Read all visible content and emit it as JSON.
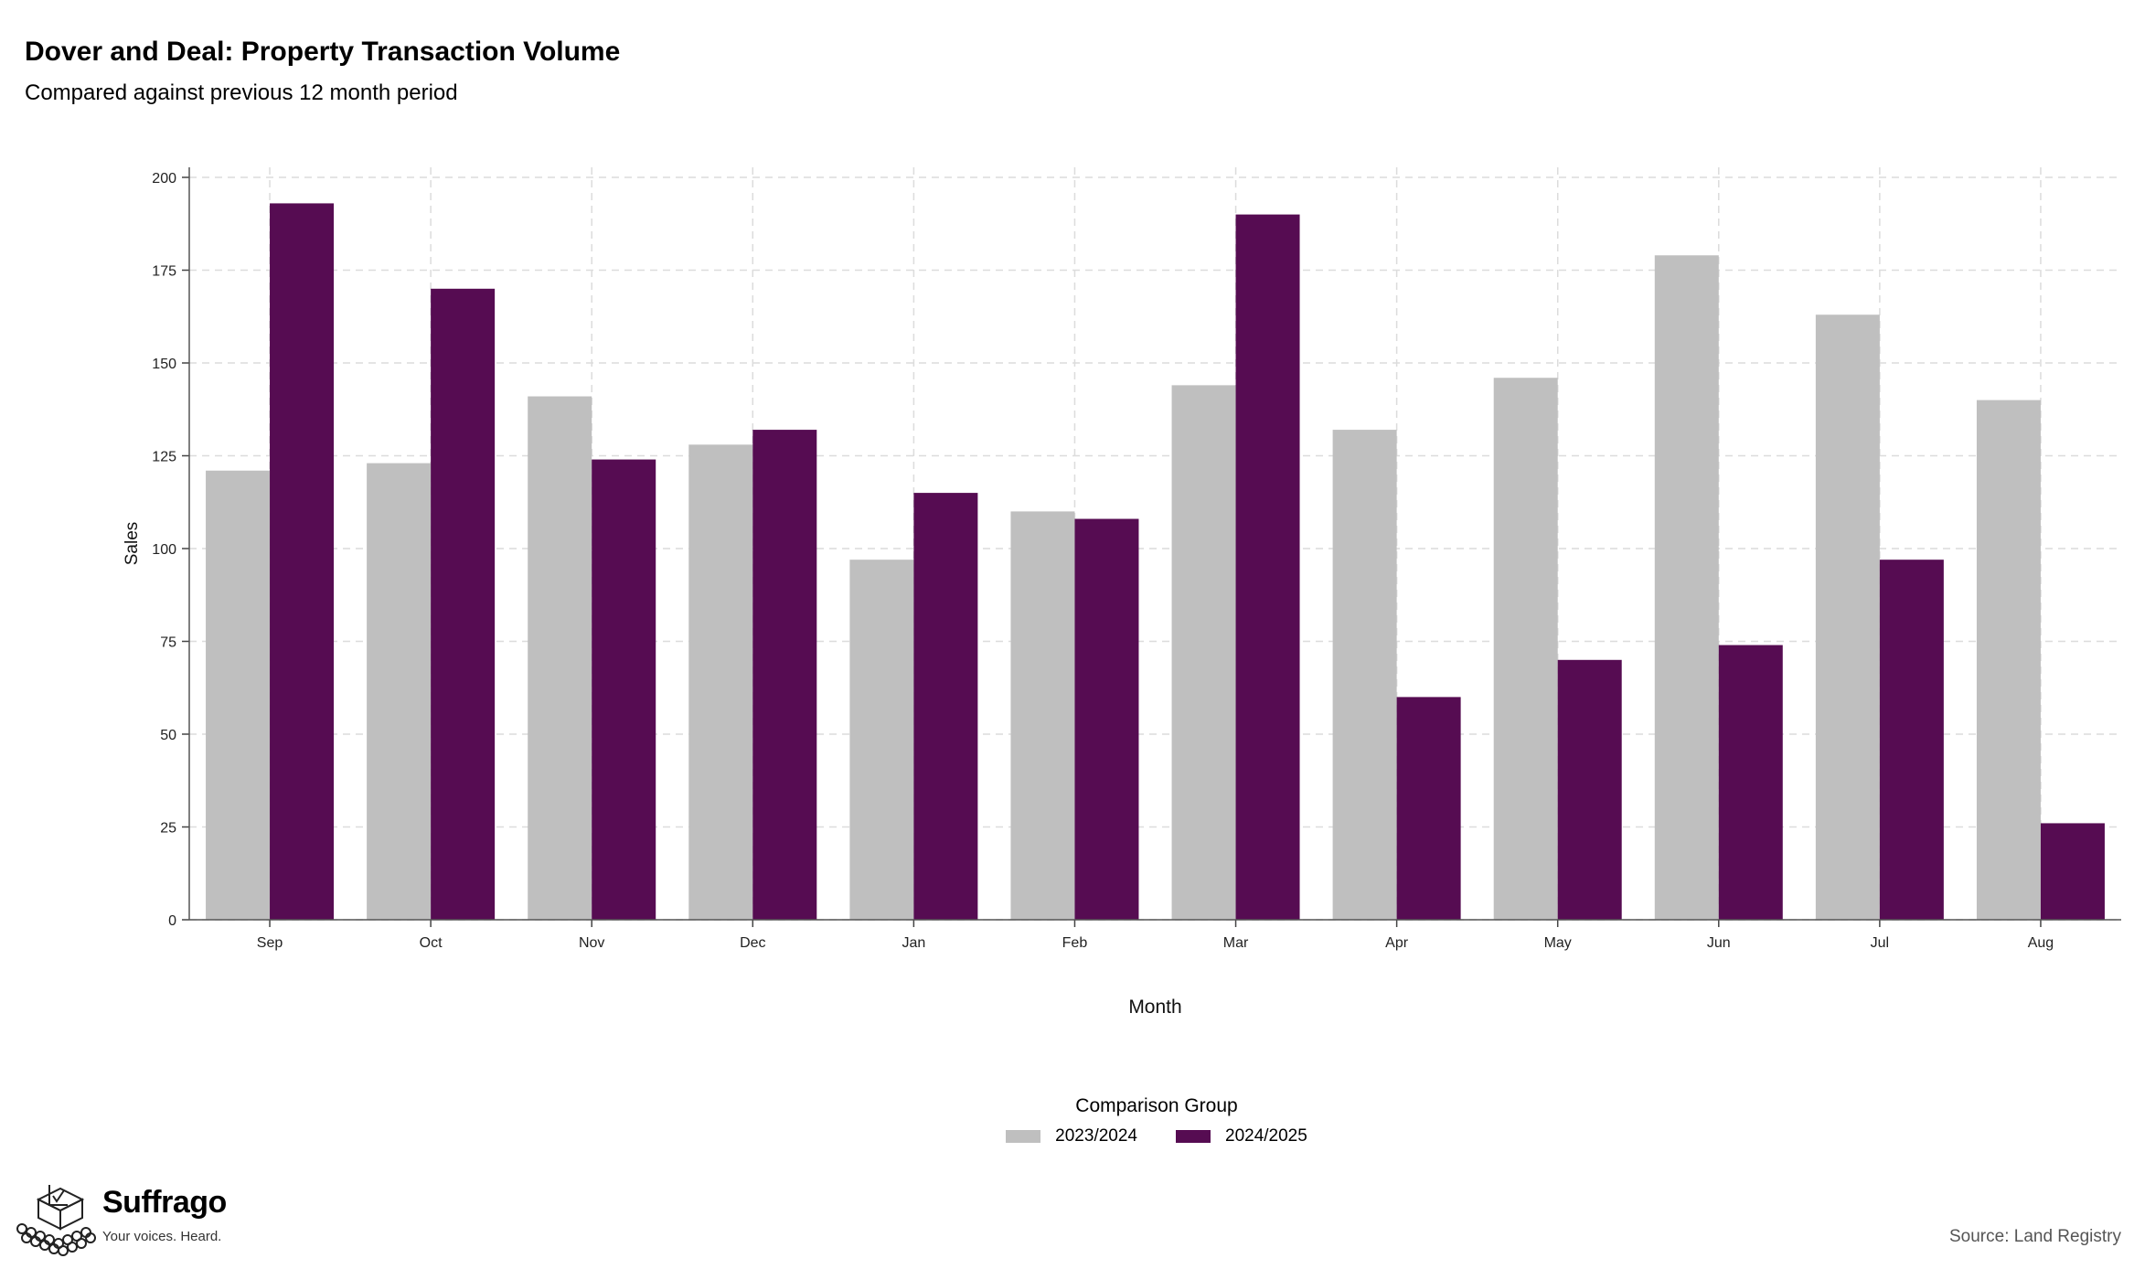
{
  "header": {
    "title": "Dover and Deal: Property Transaction Volume",
    "subtitle": "Compared against previous 12 month period"
  },
  "chart_data": {
    "type": "bar",
    "title": "Dover and Deal: Property Transaction Volume",
    "subtitle": "Compared against previous 12 month period",
    "xlabel": "Month",
    "ylabel": "Sales",
    "categories": [
      "Sep",
      "Oct",
      "Nov",
      "Dec",
      "Jan",
      "Feb",
      "Mar",
      "Apr",
      "May",
      "Jun",
      "Jul",
      "Aug"
    ],
    "series": [
      {
        "name": "2023/2024",
        "color": "#bfbfbf",
        "values": [
          121,
          123,
          141,
          128,
          97,
          110,
          144,
          132,
          146,
          179,
          163,
          140
        ]
      },
      {
        "name": "2024/2025",
        "color": "#560c52",
        "values": [
          193,
          170,
          124,
          132,
          115,
          108,
          190,
          60,
          70,
          74,
          97,
          26
        ]
      }
    ],
    "ylim": [
      0,
      200
    ],
    "yticks": [
      0,
      25,
      50,
      75,
      100,
      125,
      150,
      175,
      200
    ],
    "grid": true,
    "legend": {
      "title": "Comparison Group",
      "position": "bottom"
    }
  },
  "branding": {
    "name": "Suffrago",
    "tagline": "Your voices. Heard."
  },
  "footer": {
    "source": "Source: Land Registry"
  }
}
